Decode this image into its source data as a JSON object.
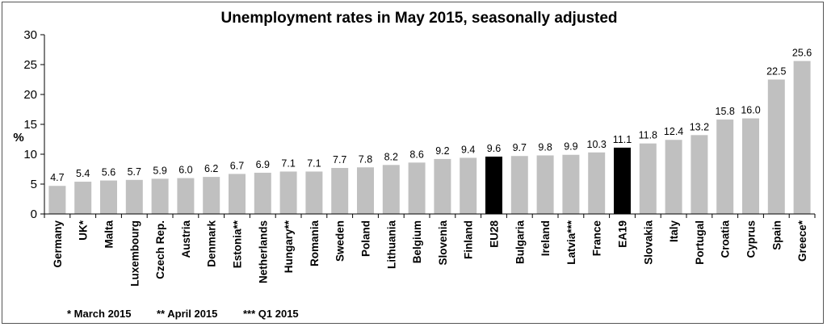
{
  "chart_data": {
    "type": "bar",
    "title": "Unemployment rates in May 2015, seasonally adjusted",
    "ylabel": "%",
    "xlabel": "",
    "ylim": [
      0,
      30
    ],
    "yticks": [
      0,
      5,
      10,
      15,
      20,
      25,
      30
    ],
    "grid": false,
    "categories": [
      "Germany",
      "UK*",
      "Malta",
      "Luxembourg",
      "Czech Rep.",
      "Austria",
      "Denmark",
      "Estonia**",
      "Netherlands",
      "Hungary**",
      "Romania",
      "Sweden",
      "Poland",
      "Lithuania",
      "Belgium",
      "Slovenia",
      "Finland",
      "EU28",
      "Bulgaria",
      "Ireland",
      "Latvia***",
      "France",
      "EA19",
      "Slovakia",
      "Italy",
      "Portugal",
      "Croatia",
      "Cyprus",
      "Spain",
      "Greece*"
    ],
    "values": [
      4.7,
      5.4,
      5.6,
      5.7,
      5.9,
      6.0,
      6.2,
      6.7,
      6.9,
      7.1,
      7.1,
      7.7,
      7.8,
      8.2,
      8.6,
      9.2,
      9.4,
      9.6,
      9.7,
      9.8,
      9.9,
      10.3,
      11.1,
      11.8,
      12.4,
      13.2,
      15.8,
      16.0,
      22.5,
      25.6
    ],
    "value_labels": [
      "4.7",
      "5.4",
      "5.6",
      "5.7",
      "5.9",
      "6.0",
      "6.2",
      "6.7",
      "6.9",
      "7.1",
      "7.1",
      "7.7",
      "7.8",
      "8.2",
      "8.6",
      "9.2",
      "9.4",
      "9.6",
      "9.7",
      "9.8",
      "9.9",
      "10.3",
      "11.1",
      "11.8",
      "12.4",
      "13.2",
      "15.8",
      "16.0",
      "22.5",
      "25.6"
    ],
    "highlight": [
      "EU28",
      "EA19"
    ],
    "colors": {
      "bar": "#c0c0c0",
      "highlight": "#000000",
      "axis": "#000000"
    },
    "footnotes": [
      "* March 2015",
      "** April 2015",
      "*** Q1 2015"
    ]
  }
}
